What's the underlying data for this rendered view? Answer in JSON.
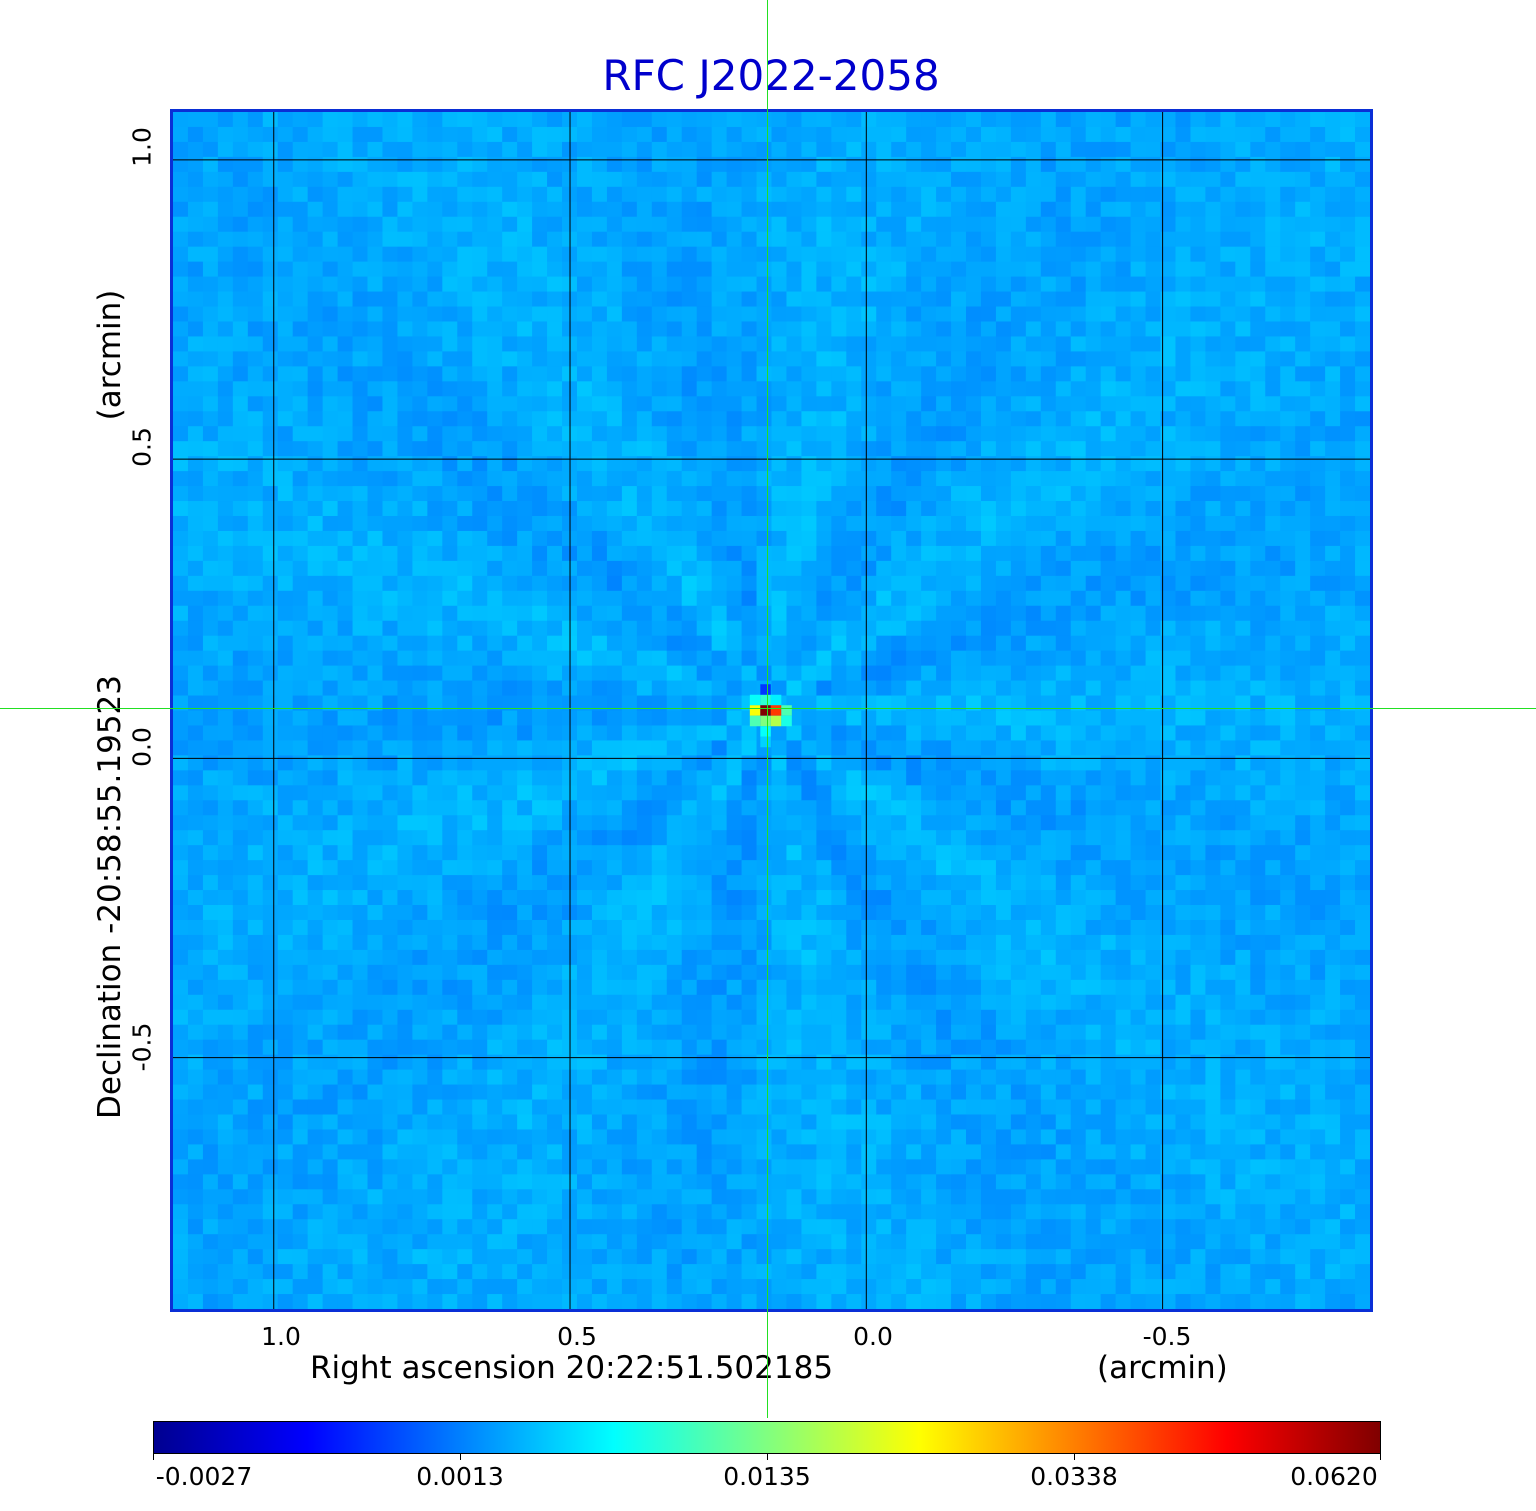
{
  "chart_data": {
    "type": "heatmap",
    "title": "RFC J2022-2058",
    "xlabel": "Right ascension  20:22:51.502185",
    "xunit": "(arcmin)",
    "ylabel": "Declination  -20:58:55.19523",
    "yunit": "(arcmin)",
    "x_ticks": [
      "1.0",
      "0.5",
      "0.0",
      "-0.5"
    ],
    "y_ticks": [
      "1.0",
      "0.5",
      "0.0",
      "-0.5"
    ],
    "xlim": [
      1.17,
      -0.85
    ],
    "ylim": [
      -0.92,
      1.08
    ],
    "grid": true,
    "x_tick_values": [
      1.0,
      0.5,
      0.0,
      -0.5
    ],
    "y_tick_values": [
      1.0,
      0.5,
      0.0,
      -0.5
    ],
    "crosshair": {
      "x": 0.17,
      "y": 0.08
    },
    "peak": {
      "x": 0.17,
      "y": 0.08,
      "value": 0.062
    },
    "colorbar": {
      "colormap": "jet",
      "ticks": [
        "-0.0027",
        "0.0013",
        "0.0135",
        "0.0338",
        "0.0620"
      ]
    }
  },
  "colors": {
    "title": "#0000cc",
    "crosshair": "#22e022",
    "grid": "#000000",
    "background_field": "#1a6ff0"
  }
}
